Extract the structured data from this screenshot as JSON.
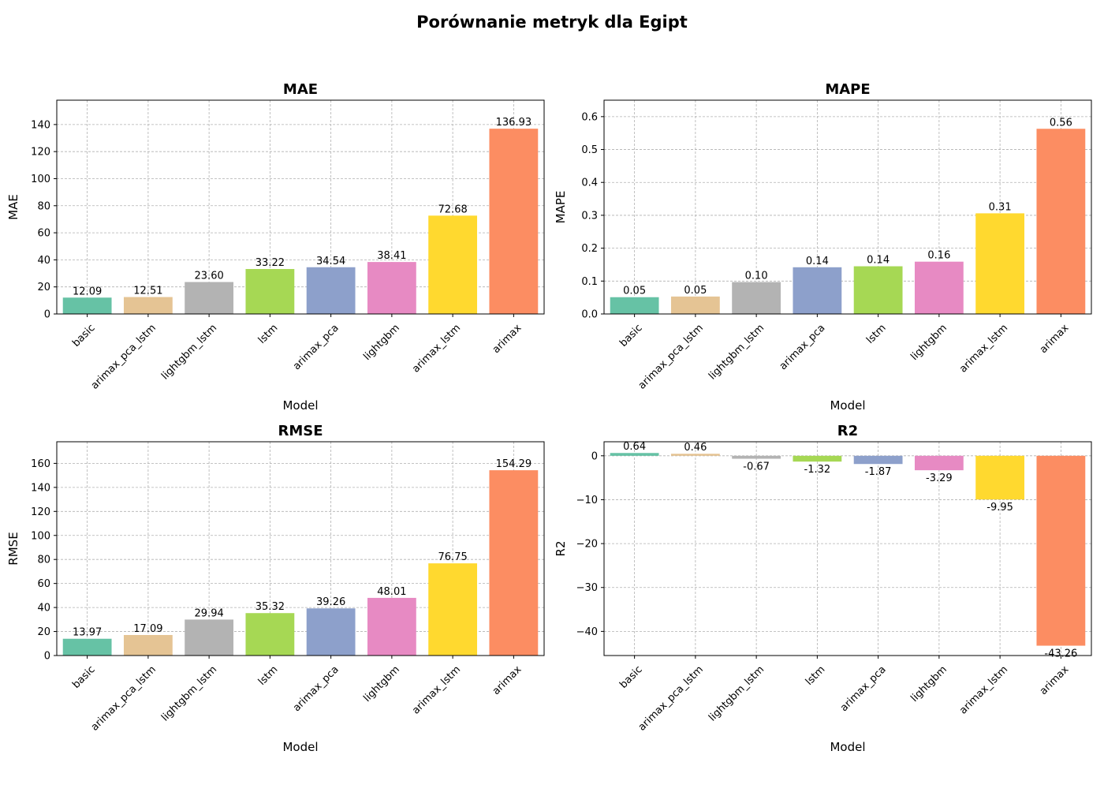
{
  "figure": {
    "title": "Porównanie metryk dla Egipt"
  },
  "chart_data": [
    {
      "type": "bar",
      "title": "MAE",
      "xlabel": "Model",
      "ylabel": "MAE",
      "categories": [
        "basic",
        "arimax_pca_lstm",
        "lightgbm_lstm",
        "lstm",
        "arimax_pca",
        "lightgbm",
        "arimax_lstm",
        "arimax"
      ],
      "values": [
        12.09,
        12.51,
        23.6,
        33.22,
        34.54,
        38.41,
        72.68,
        136.93
      ],
      "labels": [
        "12.09",
        "12.51",
        "23.60",
        "33.22",
        "34.54",
        "38.41",
        "72.68",
        "136.93"
      ],
      "colors": [
        "#66c2a5",
        "#e5c494",
        "#b3b3b3",
        "#a6d854",
        "#8da0cb",
        "#e78ac3",
        "#ffd92f",
        "#fc8d62"
      ],
      "ylim": [
        0,
        158
      ],
      "yticks": [
        0,
        20,
        40,
        60,
        80,
        100,
        120,
        140
      ],
      "ytick_labels": [
        "0",
        "20",
        "40",
        "60",
        "80",
        "100",
        "120",
        "140"
      ],
      "grid": true
    },
    {
      "type": "bar",
      "title": "MAPE",
      "xlabel": "Model",
      "ylabel": "MAPE",
      "categories": [
        "basic",
        "arimax_pca_lstm",
        "lightgbm_lstm",
        "arimax_pca",
        "lstm",
        "lightgbm",
        "arimax_lstm",
        "arimax"
      ],
      "values": [
        0.051,
        0.053,
        0.097,
        0.142,
        0.145,
        0.159,
        0.306,
        0.563
      ],
      "labels": [
        "0.05",
        "0.05",
        "0.10",
        "0.14",
        "0.14",
        "0.16",
        "0.31",
        "0.56"
      ],
      "colors": [
        "#66c2a5",
        "#e5c494",
        "#b3b3b3",
        "#8da0cb",
        "#a6d854",
        "#e78ac3",
        "#ffd92f",
        "#fc8d62"
      ],
      "ylim": [
        0,
        0.65
      ],
      "yticks": [
        0,
        0.1,
        0.2,
        0.3,
        0.4,
        0.5,
        0.6
      ],
      "ytick_labels": [
        "0.0",
        "0.1",
        "0.2",
        "0.3",
        "0.4",
        "0.5",
        "0.6"
      ],
      "grid": true
    },
    {
      "type": "bar",
      "title": "RMSE",
      "xlabel": "Model",
      "ylabel": "RMSE",
      "categories": [
        "basic",
        "arimax_pca_lstm",
        "lightgbm_lstm",
        "lstm",
        "arimax_pca",
        "lightgbm",
        "arimax_lstm",
        "arimax"
      ],
      "values": [
        13.97,
        17.09,
        29.94,
        35.32,
        39.26,
        48.01,
        76.75,
        154.29
      ],
      "labels": [
        "13.97",
        "17.09",
        "29.94",
        "35.32",
        "39.26",
        "48.01",
        "76.75",
        "154.29"
      ],
      "colors": [
        "#66c2a5",
        "#e5c494",
        "#b3b3b3",
        "#a6d854",
        "#8da0cb",
        "#e78ac3",
        "#ffd92f",
        "#fc8d62"
      ],
      "ylim": [
        0,
        178
      ],
      "yticks": [
        0,
        20,
        40,
        60,
        80,
        100,
        120,
        140,
        160
      ],
      "ytick_labels": [
        "0",
        "20",
        "40",
        "60",
        "80",
        "100",
        "120",
        "140",
        "160"
      ],
      "grid": true
    },
    {
      "type": "bar",
      "title": "R2",
      "xlabel": "Model",
      "ylabel": "R2",
      "categories": [
        "basic",
        "arimax_pca_lstm",
        "lightgbm_lstm",
        "lstm",
        "arimax_pca",
        "lightgbm",
        "arimax_lstm",
        "arimax"
      ],
      "values": [
        0.64,
        0.46,
        -0.67,
        -1.32,
        -1.87,
        -3.29,
        -9.95,
        -43.26
      ],
      "labels": [
        "0.64",
        "0.46",
        "-0.67",
        "-1.32",
        "-1.87",
        "-3.29",
        "-9.95",
        "-43.26"
      ],
      "colors": [
        "#66c2a5",
        "#e5c494",
        "#b3b3b3",
        "#a6d854",
        "#8da0cb",
        "#e78ac3",
        "#ffd92f",
        "#fc8d62"
      ],
      "ylim": [
        -45.5,
        3.2
      ],
      "yticks": [
        0,
        -10,
        -20,
        -30,
        -40
      ],
      "ytick_labels": [
        "0",
        "−10",
        "−20",
        "−30",
        "−40"
      ],
      "grid": true
    }
  ]
}
